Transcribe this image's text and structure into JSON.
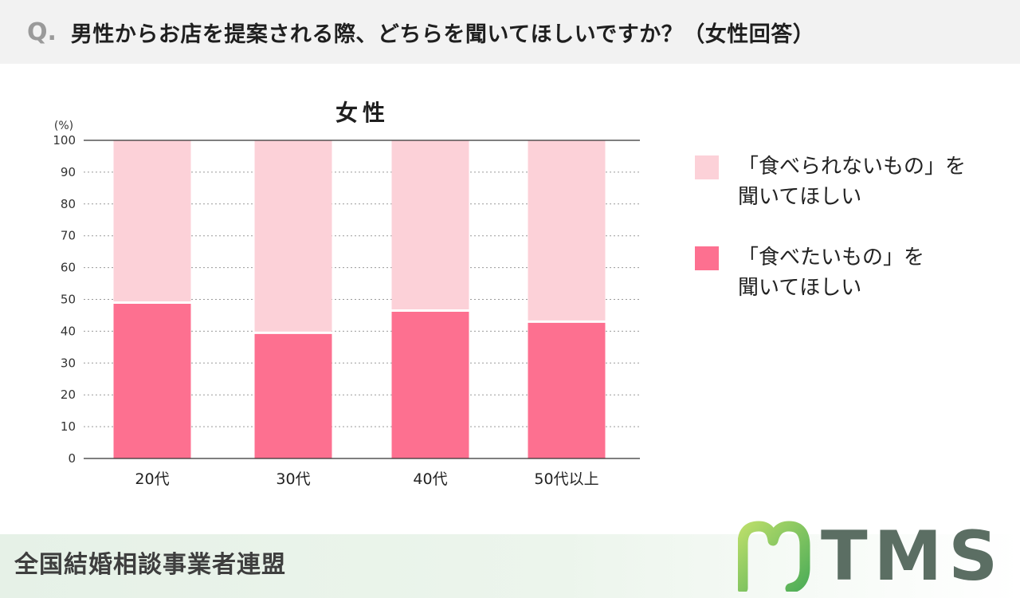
{
  "header": {
    "q_mark": "Q.",
    "question": "男性からお店を提案される際、どちらを聞いてほしいですか？（女性回答）"
  },
  "legend": [
    {
      "name": "「食べられないもの」を聞いてほしい",
      "line1": "「食べられないもの」を",
      "line2": "聞いてほしい",
      "color": "#fcd1d8"
    },
    {
      "name": "「食べたいもの」を聞いてほしい",
      "line1": "「食べたいもの」を",
      "line2": "聞いてほしい",
      "color": "#fd7090"
    }
  ],
  "footer": {
    "organization": "全国結婚相談事業者連盟",
    "logo_text": "TMS",
    "logo_icon": "tms-green-logo-icon"
  },
  "chart_data": {
    "type": "bar",
    "stacked": true,
    "title": "女性",
    "unit_label": "(%)",
    "categories": [
      "20代",
      "30代",
      "40代",
      "50代以上"
    ],
    "series": [
      {
        "name": "「食べたいもの」を聞いてほしい",
        "color": "#fd7090",
        "values": [
          49,
          39.5,
          46.5,
          43
        ]
      },
      {
        "name": "「食べられないもの」を聞いてほしい",
        "color": "#fcd1d8",
        "values": [
          51,
          60.5,
          53.5,
          57
        ]
      }
    ],
    "ylim": [
      0,
      100
    ],
    "yticks": [
      0,
      10,
      20,
      30,
      40,
      50,
      60,
      70,
      80,
      90,
      100
    ],
    "grid": true,
    "legend_position": "right"
  }
}
